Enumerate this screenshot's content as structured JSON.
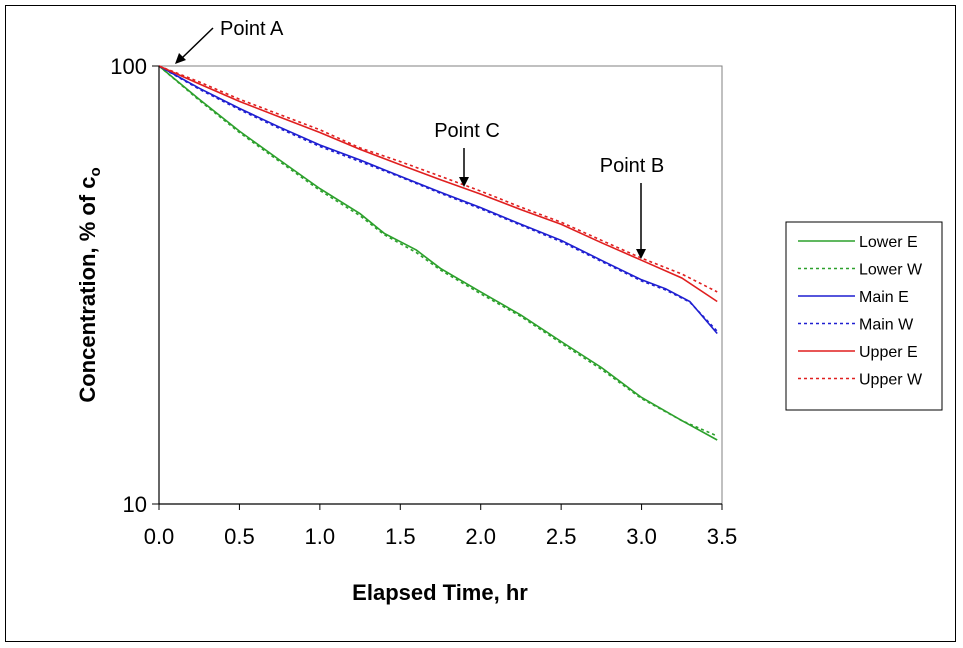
{
  "chart_data": {
    "type": "line",
    "title": "",
    "xlabel": "Elapsed Time, hr",
    "ylabel": "Concentration, % of c",
    "ylabel_subscript": "o",
    "xlim": [
      0,
      3.5
    ],
    "ylim": [
      10,
      100
    ],
    "yscale": "log",
    "x_ticks": [
      "0.0",
      "0.5",
      "1.0",
      "1.5",
      "2.0",
      "2.5",
      "3.0",
      "3.5"
    ],
    "y_ticks": [
      "10",
      "100"
    ],
    "grid": false,
    "legend_position": "right",
    "annotations": [
      {
        "text": "Point A",
        "x": 0.0,
        "y": 100
      },
      {
        "text": "Point C",
        "x": 2.0,
        "y": 51
      },
      {
        "text": "Point B",
        "x": 3.13,
        "y": 34
      }
    ],
    "series": [
      {
        "name": "Lower E",
        "color": "#2ca02c",
        "dash": "solid",
        "x": [
          0,
          0.25,
          0.5,
          0.75,
          1.0,
          1.25,
          1.4,
          1.6,
          1.75,
          2.0,
          2.25,
          2.5,
          2.75,
          3.0,
          3.25,
          3.47
        ],
        "y": [
          100,
          84,
          71,
          61,
          52.5,
          46,
          41.5,
          38,
          34.5,
          30.5,
          27,
          23.5,
          20.5,
          17.5,
          15.5,
          14
        ]
      },
      {
        "name": "Lower W",
        "color": "#2ca02c",
        "dash": "dotted",
        "x": [
          0,
          0.25,
          0.5,
          0.75,
          1.0,
          1.25,
          1.4,
          1.6,
          1.75,
          2.0,
          2.25,
          2.5,
          2.75,
          3.0,
          3.25,
          3.47
        ],
        "y": [
          100,
          83.5,
          70.5,
          60.5,
          52,
          45.5,
          41.2,
          37.5,
          34.2,
          30.2,
          26.8,
          23.3,
          20.3,
          17.4,
          15.5,
          14.3
        ]
      },
      {
        "name": "Main E",
        "color": "#1f1fd1",
        "dash": "solid",
        "x": [
          0,
          0.25,
          0.5,
          0.75,
          1.0,
          1.25,
          1.5,
          1.75,
          2.0,
          2.25,
          2.5,
          2.75,
          3.0,
          3.15,
          3.3,
          3.47
        ],
        "y": [
          100,
          89,
          80,
          72.5,
          66,
          61,
          56,
          51.5,
          47.5,
          43.5,
          40,
          36,
          32.5,
          31,
          29,
          24.5
        ]
      },
      {
        "name": "Main W",
        "color": "#1f1fd1",
        "dash": "dotted",
        "x": [
          0,
          0.25,
          0.5,
          0.75,
          1.0,
          1.25,
          1.5,
          1.75,
          2.0,
          2.25,
          2.5,
          2.75,
          3.0,
          3.15,
          3.3,
          3.47
        ],
        "y": [
          100,
          88.5,
          79.5,
          72,
          65.5,
          60.5,
          55.8,
          51.2,
          47.2,
          43.3,
          39.7,
          35.8,
          32.3,
          30.8,
          28.9,
          24.8
        ]
      },
      {
        "name": "Upper E",
        "color": "#e01f1f",
        "dash": "solid",
        "x": [
          0,
          0.25,
          0.5,
          0.75,
          1.0,
          1.25,
          1.5,
          1.75,
          2.0,
          2.25,
          2.5,
          2.75,
          3.0,
          3.25,
          3.47
        ],
        "y": [
          100,
          91,
          83,
          76.5,
          70.5,
          64.5,
          59.5,
          55,
          51,
          47,
          43.5,
          39.5,
          36,
          32.8,
          29
        ]
      },
      {
        "name": "Upper W",
        "color": "#e01f1f",
        "dash": "dotted",
        "x": [
          0,
          0.25,
          0.5,
          0.75,
          1.0,
          1.25,
          1.5,
          1.75,
          2.0,
          2.25,
          2.5,
          2.75,
          3.0,
          3.25,
          3.47
        ],
        "y": [
          100,
          92,
          84,
          77.5,
          71.5,
          65,
          60.5,
          56,
          51.8,
          47.6,
          44,
          40,
          36.4,
          33.5,
          30.5
        ]
      }
    ]
  }
}
